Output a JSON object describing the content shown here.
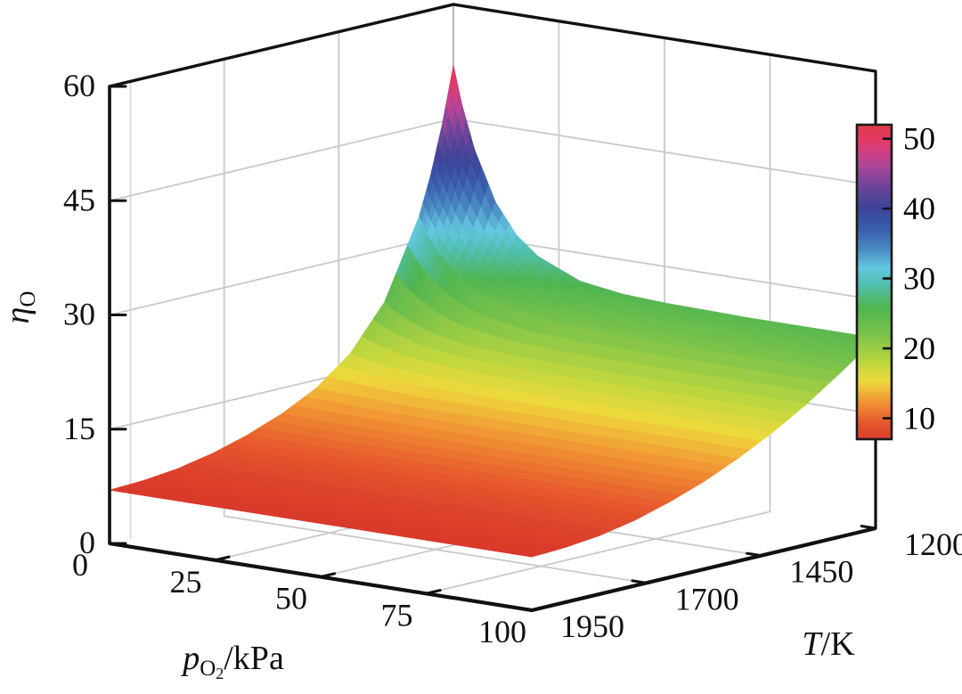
{
  "figure": {
    "background": "#ffffff"
  },
  "chart_data": {
    "type": "surface",
    "title": "",
    "x_axis": {
      "label_var": "p",
      "label_sub": "O",
      "label_subsub": "2",
      "label_rest": "/kPa",
      "ticks": [
        0,
        25,
        50,
        75,
        100
      ],
      "range": [
        0,
        100
      ]
    },
    "y_axis": {
      "label_var": "T",
      "label_rest": "/K",
      "ticks": [
        1950,
        1700,
        1450,
        1200
      ],
      "range": [
        1950,
        1200
      ],
      "reversed": true
    },
    "z_axis": {
      "label_var": "η",
      "label_sub": "O",
      "ticks": [
        0,
        15,
        30,
        45,
        60
      ],
      "range": [
        0,
        60
      ]
    },
    "colorbar": {
      "min": 7,
      "max": 52,
      "ticks": [
        10,
        20,
        30,
        40,
        50
      ],
      "stops": [
        [
          0.0,
          "#d93a2b"
        ],
        [
          0.055,
          "#e75a2d"
        ],
        [
          0.125,
          "#f29a35"
        ],
        [
          0.185,
          "#eed93c"
        ],
        [
          0.24,
          "#c0d73e"
        ],
        [
          0.33,
          "#7cc34a"
        ],
        [
          0.42,
          "#4fb552"
        ],
        [
          0.5,
          "#52c0b8"
        ],
        [
          0.545,
          "#64c8e0"
        ],
        [
          0.6,
          "#4b8ec6"
        ],
        [
          0.67,
          "#3a5cab"
        ],
        [
          0.735,
          "#3d4397"
        ],
        [
          0.8,
          "#6a4499"
        ],
        [
          0.86,
          "#a3479b"
        ],
        [
          0.91,
          "#cf3f85"
        ],
        [
          0.955,
          "#e33a64"
        ],
        [
          1.0,
          "#e03c47"
        ]
      ]
    },
    "surface": {
      "p": [
        0,
        2,
        5,
        10,
        15,
        20,
        30,
        40,
        50,
        60,
        70,
        80,
        90,
        100
      ],
      "T": [
        1950,
        1875,
        1800,
        1725,
        1650,
        1575,
        1500,
        1425,
        1350,
        1275,
        1250,
        1225,
        1200
      ],
      "eta": [
        [
          7.0,
          7.0,
          7.0,
          7.0,
          7.0,
          7.0,
          7.0,
          7.0,
          7.0,
          7.0,
          7.0,
          7.0,
          7.0,
          7.0
        ],
        [
          7.2,
          7.2,
          7.2,
          7.2,
          7.2,
          7.2,
          7.2,
          7.2,
          7.2,
          7.2,
          7.2,
          7.2,
          7.2,
          7.2
        ],
        [
          7.7,
          7.7,
          7.7,
          7.7,
          7.7,
          7.7,
          7.7,
          7.7,
          7.7,
          7.7,
          7.7,
          7.7,
          7.7,
          7.7
        ],
        [
          8.6,
          8.6,
          8.6,
          8.6,
          8.6,
          8.6,
          8.6,
          8.6,
          8.6,
          8.6,
          8.6,
          8.6,
          8.6,
          8.6
        ],
        [
          9.9,
          9.9,
          9.9,
          9.9,
          9.9,
          9.9,
          9.9,
          9.9,
          9.9,
          9.9,
          9.9,
          9.9,
          9.9,
          9.9
        ],
        [
          11.6,
          11.6,
          11.6,
          11.5,
          11.5,
          11.5,
          11.5,
          11.5,
          11.5,
          11.5,
          11.5,
          11.5,
          11.5,
          11.5
        ],
        [
          13.9,
          13.9,
          13.8,
          13.7,
          13.6,
          13.5,
          13.5,
          13.5,
          13.5,
          13.5,
          13.5,
          13.5,
          13.5,
          13.5
        ],
        [
          17.4,
          17.1,
          16.8,
          16.4,
          16.2,
          16.0,
          15.9,
          15.8,
          15.8,
          15.8,
          15.8,
          15.8,
          15.8,
          15.8
        ],
        [
          23.1,
          22.2,
          21.3,
          20.2,
          19.5,
          19.1,
          18.7,
          18.6,
          18.5,
          18.5,
          18.5,
          18.5,
          18.5,
          18.5
        ],
        [
          33.2,
          31.1,
          28.6,
          25.9,
          24.2,
          23.2,
          22.2,
          21.8,
          21.7,
          21.6,
          21.6,
          21.6,
          21.6,
          21.6
        ],
        [
          38.2,
          35.4,
          32.1,
          28.4,
          26.2,
          24.8,
          23.5,
          23.0,
          22.8,
          22.7,
          22.7,
          22.7,
          22.7,
          22.7
        ],
        [
          44.4,
          40.7,
          36.3,
          31.4,
          28.4,
          26.6,
          24.8,
          24.2,
          24.0,
          23.9,
          23.8,
          23.8,
          23.8,
          23.8
        ],
        [
          52.0,
          47.1,
          41.4,
          34.9,
          31.0,
          28.7,
          26.3,
          25.5,
          25.2,
          25.1,
          25.0,
          25.0,
          25.0,
          25.0
        ]
      ]
    },
    "colors": {
      "axis": "#111111",
      "grid": "#c9c9c9",
      "grid_light": "#d4d4d4",
      "back_edge": "#b8b8b8",
      "tick_label": "#111111",
      "background": "#ffffff"
    }
  }
}
